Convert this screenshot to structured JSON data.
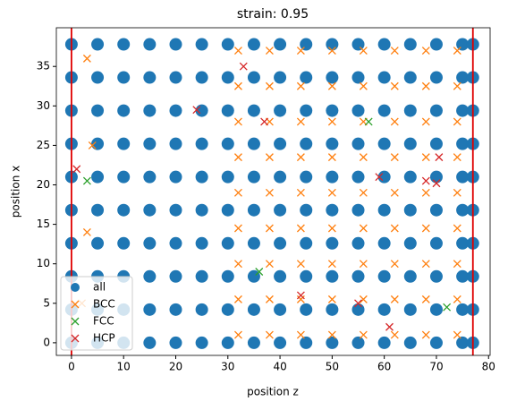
{
  "chart_data": {
    "type": "scatter",
    "title": "strain: 0.95",
    "xlabel": "position z",
    "ylabel": "position x",
    "xlim": [
      -2.9,
      80.3
    ],
    "ylim": [
      -1.6,
      39.9
    ],
    "xticks": [
      0,
      10,
      20,
      30,
      40,
      50,
      60,
      70,
      80
    ],
    "yticks": [
      0,
      5,
      10,
      15,
      20,
      25,
      30,
      35
    ],
    "legend": "lower left",
    "vlines": [
      {
        "x": 0,
        "color": "#e00000"
      },
      {
        "x": 77,
        "color": "#e00000"
      }
    ],
    "series": [
      {
        "name": "all",
        "color": "#1f77b4",
        "marker": "o",
        "x": [
          0,
          5,
          10,
          15,
          20,
          25,
          30,
          35,
          40,
          45,
          50,
          55,
          60,
          65,
          70,
          75,
          77,
          0,
          5,
          10,
          15,
          20,
          25,
          30,
          35,
          40,
          45,
          50,
          55,
          60,
          65,
          70,
          75,
          77,
          0,
          5,
          10,
          15,
          20,
          25,
          30,
          35,
          40,
          45,
          50,
          55,
          60,
          65,
          70,
          75,
          77,
          0,
          5,
          10,
          15,
          20,
          25,
          30,
          35,
          40,
          45,
          50,
          55,
          60,
          65,
          70,
          75,
          77,
          0,
          5,
          10,
          15,
          20,
          25,
          30,
          35,
          40,
          45,
          50,
          55,
          60,
          65,
          70,
          75,
          77,
          0,
          5,
          10,
          15,
          20,
          25,
          30,
          35,
          40,
          45,
          50,
          55,
          60,
          65,
          70,
          75,
          77,
          0,
          5,
          10,
          15,
          20,
          25,
          30,
          35,
          40,
          45,
          50,
          55,
          60,
          65,
          70,
          75,
          77,
          0,
          5,
          10,
          15,
          20,
          25,
          30,
          35,
          40,
          45,
          50,
          55,
          60,
          65,
          70,
          75,
          77,
          0,
          5,
          10,
          15,
          20,
          25,
          30,
          35,
          40,
          45,
          50,
          55,
          60,
          65,
          70,
          75,
          77,
          0,
          5,
          10,
          15,
          20,
          25,
          30,
          35,
          40,
          45,
          50,
          55,
          60,
          65,
          70,
          75,
          77
        ],
        "y": [
          0,
          0,
          0,
          0,
          0,
          0,
          0,
          0,
          0,
          0,
          0,
          0,
          0,
          0,
          0,
          0,
          0,
          4.2,
          4.2,
          4.2,
          4.2,
          4.2,
          4.2,
          4.2,
          4.2,
          4.2,
          4.2,
          4.2,
          4.2,
          4.2,
          4.2,
          4.2,
          4.2,
          4.2,
          8.4,
          8.4,
          8.4,
          8.4,
          8.4,
          8.4,
          8.4,
          8.4,
          8.4,
          8.4,
          8.4,
          8.4,
          8.4,
          8.4,
          8.4,
          8.4,
          8.4,
          12.6,
          12.6,
          12.6,
          12.6,
          12.6,
          12.6,
          12.6,
          12.6,
          12.6,
          12.6,
          12.6,
          12.6,
          12.6,
          12.6,
          12.6,
          12.6,
          12.6,
          16.8,
          16.8,
          16.8,
          16.8,
          16.8,
          16.8,
          16.8,
          16.8,
          16.8,
          16.8,
          16.8,
          16.8,
          16.8,
          16.8,
          16.8,
          16.8,
          16.8,
          21,
          21,
          21,
          21,
          21,
          21,
          21,
          21,
          21,
          21,
          21,
          21,
          21,
          21,
          21,
          21,
          21,
          25.2,
          25.2,
          25.2,
          25.2,
          25.2,
          25.2,
          25.2,
          25.2,
          25.2,
          25.2,
          25.2,
          25.2,
          25.2,
          25.2,
          25.2,
          25.2,
          25.2,
          29.4,
          29.4,
          29.4,
          29.4,
          29.4,
          29.4,
          29.4,
          29.4,
          29.4,
          29.4,
          29.4,
          29.4,
          29.4,
          29.4,
          29.4,
          29.4,
          29.4,
          33.6,
          33.6,
          33.6,
          33.6,
          33.6,
          33.6,
          33.6,
          33.6,
          33.6,
          33.6,
          33.6,
          33.6,
          33.6,
          33.6,
          33.6,
          33.6,
          33.6,
          37.8,
          37.8,
          37.8,
          37.8,
          37.8,
          37.8,
          37.8,
          37.8,
          37.8,
          37.8,
          37.8,
          37.8,
          37.8,
          37.8,
          37.8,
          37.8,
          37.8
        ]
      },
      {
        "name": "BCC",
        "color": "#ff7f0e",
        "marker": "x",
        "x": [
          32,
          38,
          44,
          50,
          56,
          62,
          68,
          74,
          32,
          38,
          44,
          50,
          56,
          62,
          68,
          74,
          32,
          38,
          44,
          50,
          56,
          62,
          68,
          74,
          32,
          38,
          44,
          50,
          56,
          62,
          68,
          74,
          32,
          38,
          44,
          50,
          56,
          62,
          68,
          74,
          32,
          38,
          44,
          50,
          56,
          62,
          68,
          74,
          32,
          38,
          44,
          50,
          56,
          62,
          68,
          74,
          32,
          38,
          44,
          50,
          56,
          62,
          68,
          74,
          32,
          38,
          44,
          50,
          56,
          62,
          68,
          74,
          2,
          3,
          4,
          3
        ],
        "y": [
          1,
          1,
          1,
          1,
          1,
          1,
          1,
          1,
          5.5,
          5.5,
          5.5,
          5.5,
          5.5,
          5.5,
          5.5,
          5.5,
          10,
          10,
          10,
          10,
          10,
          10,
          10,
          10,
          14.5,
          14.5,
          14.5,
          14.5,
          14.5,
          14.5,
          14.5,
          14.5,
          19,
          19,
          19,
          19,
          19,
          19,
          19,
          19,
          23.5,
          23.5,
          23.5,
          23.5,
          23.5,
          23.5,
          23.5,
          23.5,
          28,
          28,
          28,
          28,
          28,
          28,
          28,
          28,
          32.5,
          32.5,
          32.5,
          32.5,
          32.5,
          32.5,
          32.5,
          32.5,
          37,
          37,
          37,
          37,
          37,
          37,
          37,
          37,
          5,
          14,
          25,
          36
        ]
      },
      {
        "name": "FCC",
        "color": "#2ca02c",
        "marker": "x",
        "x": [
          3,
          36,
          57,
          72
        ],
        "y": [
          20.5,
          9,
          28,
          4.5
        ]
      },
      {
        "name": "HCP",
        "color": "#d62728",
        "marker": "x",
        "x": [
          1,
          24,
          37,
          33,
          59,
          68,
          70.5,
          70,
          61,
          44,
          55
        ],
        "y": [
          22,
          29.5,
          28,
          35,
          21,
          20.5,
          23.5,
          20.2,
          2,
          6,
          5
        ]
      }
    ]
  }
}
